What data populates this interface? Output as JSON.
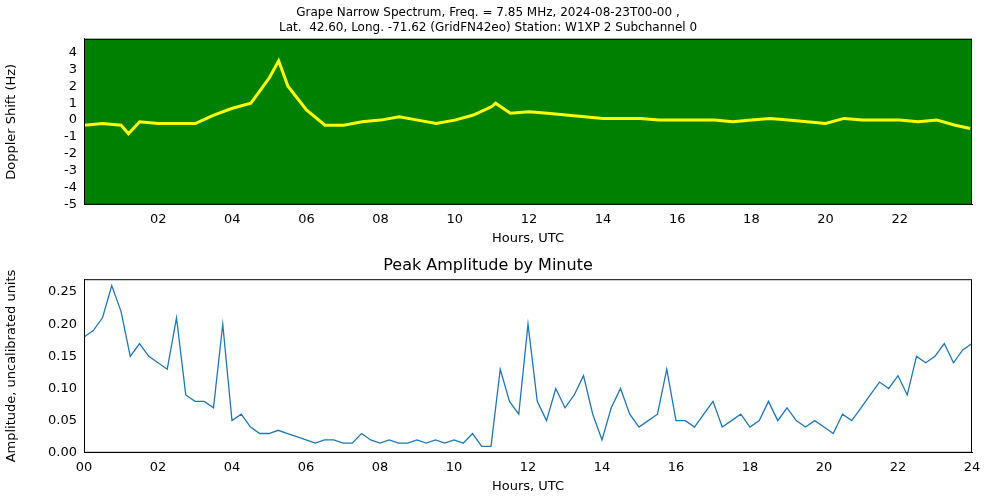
{
  "chart_data": [
    {
      "type": "line",
      "title": [
        "Grape Narrow Spectrum, Freq. = 7.85 MHz, 2024-08-23T00-00 ,",
        "Lat.  42.60, Long. -71.62 (GridFN42eo) Station: W1XP 2 Subchannel 0"
      ],
      "xlabel": "Hours, UTC",
      "ylabel": "Doppler Shift (Hz)",
      "x": [
        0,
        0.5,
        1,
        1.2,
        1.5,
        2,
        2.5,
        3,
        3.5,
        4,
        4.5,
        5,
        5.25,
        5.5,
        6,
        6.5,
        7,
        7.5,
        8,
        8.5,
        9,
        9.5,
        10,
        10.5,
        11,
        11.1,
        11.5,
        12,
        12.5,
        13,
        13.5,
        14,
        14.5,
        15,
        15.5,
        16,
        16.5,
        17,
        17.5,
        18,
        18.5,
        19,
        19.5,
        20,
        20.5,
        21,
        21.5,
        22,
        22.5,
        23,
        23.5,
        23.9
      ],
      "series": [
        {
          "color": "#ffff00",
          "values": [
            -0.3,
            -0.2,
            -0.3,
            -0.8,
            -0.1,
            -0.2,
            -0.2,
            -0.2,
            0.3,
            0.7,
            1.0,
            2.5,
            3.5,
            2.0,
            0.6,
            -0.3,
            -0.3,
            -0.1,
            0.0,
            0.2,
            0.0,
            -0.2,
            0.0,
            0.3,
            0.8,
            1.0,
            0.4,
            0.5,
            0.4,
            0.3,
            0.2,
            0.1,
            0.1,
            0.1,
            0.0,
            0.0,
            0.0,
            0.0,
            -0.1,
            0.0,
            0.1,
            0.0,
            -0.1,
            -0.2,
            0.1,
            0.0,
            0.0,
            0.0,
            -0.1,
            0.0,
            -0.3,
            -0.5
          ]
        }
      ],
      "xlim": [
        0,
        23.95
      ],
      "xticks": [
        {
          "value": 2,
          "label": "02"
        },
        {
          "value": 4,
          "label": "04"
        },
        {
          "value": 6,
          "label": "06"
        },
        {
          "value": 8,
          "label": "08"
        },
        10,
        12,
        14,
        16,
        18,
        20,
        22
      ],
      "ylim": [
        -5,
        4.8
      ],
      "yticks": [
        -5,
        -4,
        -3,
        -2,
        -1,
        0,
        1,
        2,
        3,
        4
      ],
      "grid": false
    },
    {
      "type": "line",
      "title": "Peak Amplitude by Minute",
      "xlabel": "Hours, UTC",
      "ylabel": "Amplitude, uncalibrated units",
      "x": [
        0,
        0.25,
        0.5,
        0.75,
        1,
        1.25,
        1.5,
        1.75,
        2,
        2.25,
        2.5,
        2.75,
        3,
        3.25,
        3.5,
        3.75,
        4,
        4.25,
        4.5,
        4.75,
        5,
        5.25,
        5.5,
        5.75,
        6,
        6.25,
        6.5,
        6.75,
        7,
        7.25,
        7.5,
        7.75,
        8,
        8.25,
        8.5,
        8.75,
        9,
        9.25,
        9.5,
        9.75,
        10,
        10.25,
        10.5,
        10.75,
        11,
        11.25,
        11.5,
        11.75,
        12,
        12.25,
        12.5,
        12.75,
        13,
        13.25,
        13.5,
        13.75,
        14,
        14.25,
        14.5,
        14.75,
        15,
        15.25,
        15.5,
        15.75,
        16,
        16.25,
        16.5,
        16.75,
        17,
        17.25,
        17.5,
        17.75,
        18,
        18.25,
        18.5,
        18.75,
        19,
        19.25,
        19.5,
        19.75,
        20,
        20.25,
        20.5,
        20.75,
        21,
        21.25,
        21.5,
        21.75,
        22,
        22.25,
        22.5,
        22.75,
        23,
        23.25,
        23.5,
        23.75,
        24
      ],
      "series": [
        {
          "color": "#1f77b4",
          "values": [
            0.18,
            0.19,
            0.21,
            0.26,
            0.22,
            0.15,
            0.17,
            0.15,
            0.14,
            0.13,
            0.21,
            0.09,
            0.08,
            0.08,
            0.07,
            0.2,
            0.05,
            0.06,
            0.04,
            0.03,
            0.03,
            0.035,
            0.03,
            0.025,
            0.02,
            0.015,
            0.02,
            0.02,
            0.015,
            0.015,
            0.03,
            0.02,
            0.015,
            0.02,
            0.015,
            0.015,
            0.02,
            0.015,
            0.02,
            0.015,
            0.02,
            0.015,
            0.03,
            0.01,
            0.01,
            0.13,
            0.08,
            0.06,
            0.2,
            0.08,
            0.05,
            0.1,
            0.07,
            0.09,
            0.12,
            0.06,
            0.02,
            0.07,
            0.1,
            0.06,
            0.04,
            0.05,
            0.06,
            0.13,
            0.05,
            0.05,
            0.04,
            0.06,
            0.08,
            0.04,
            0.05,
            0.06,
            0.04,
            0.05,
            0.08,
            0.05,
            0.07,
            0.05,
            0.04,
            0.05,
            0.04,
            0.03,
            0.06,
            0.05,
            0.07,
            0.09,
            0.11,
            0.1,
            0.12,
            0.09,
            0.15,
            0.14,
            0.15,
            0.17,
            0.14,
            0.16,
            0.17
          ]
        }
      ],
      "xlim": [
        0,
        24
      ],
      "xticks": [
        {
          "value": 0,
          "label": "00"
        },
        {
          "value": 2,
          "label": "02"
        },
        {
          "value": 4,
          "label": "04"
        },
        {
          "value": 6,
          "label": "06"
        },
        {
          "value": 8,
          "label": "08"
        },
        10,
        12,
        14,
        16,
        18,
        20,
        22,
        24
      ],
      "ylim": [
        0,
        0.27
      ],
      "yticks": [
        {
          "value": 0,
          "label": "0.00"
        },
        {
          "value": 0.05,
          "label": "0.05"
        },
        {
          "value": 0.1,
          "label": "0.10"
        },
        {
          "value": 0.15,
          "label": "0.15"
        },
        {
          "value": 0.2,
          "label": "0.20"
        },
        {
          "value": 0.25,
          "label": "0.25"
        }
      ],
      "grid": false
    }
  ]
}
